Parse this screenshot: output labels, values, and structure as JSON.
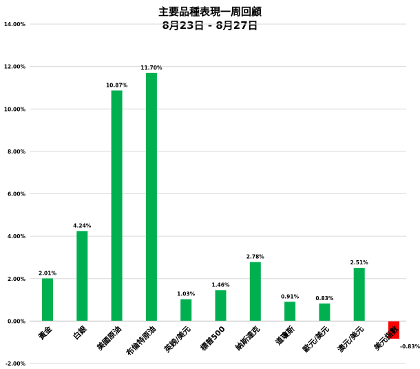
{
  "chart_data": {
    "type": "bar",
    "title": "主要品種表現一周回顧",
    "subtitle": "8月23日 - 8月27日",
    "categories": [
      "黃金",
      "白銀",
      "美國原油",
      "布倫特原油",
      "英鎊/美元",
      "標普500",
      "納斯達克",
      "道瓊斯",
      "歐元/美元",
      "澳元/美元",
      "美元指數"
    ],
    "values": [
      2.01,
      4.24,
      10.87,
      11.7,
      1.03,
      1.46,
      2.78,
      0.91,
      0.83,
      2.51,
      -0.83
    ],
    "value_labels": [
      "2.01%",
      "4.24%",
      "10.87%",
      "11.70%",
      "1.03%",
      "1.46%",
      "2.78%",
      "0.91%",
      "0.83%",
      "2.51%",
      "-0.83%"
    ],
    "yticks": [
      -2,
      0,
      2,
      4,
      6,
      8,
      10,
      12,
      14
    ],
    "ytick_labels": [
      "-2.00%",
      "0.00%",
      "2.00%",
      "4.00%",
      "6.00%",
      "8.00%",
      "10.00%",
      "12.00%",
      "14.00%"
    ],
    "ylim": [
      -2,
      14
    ],
    "grid": true,
    "legend": "none",
    "colors": {
      "positive": "#00b050",
      "negative": "#ff0000",
      "grid": "#d9d9d9"
    }
  }
}
